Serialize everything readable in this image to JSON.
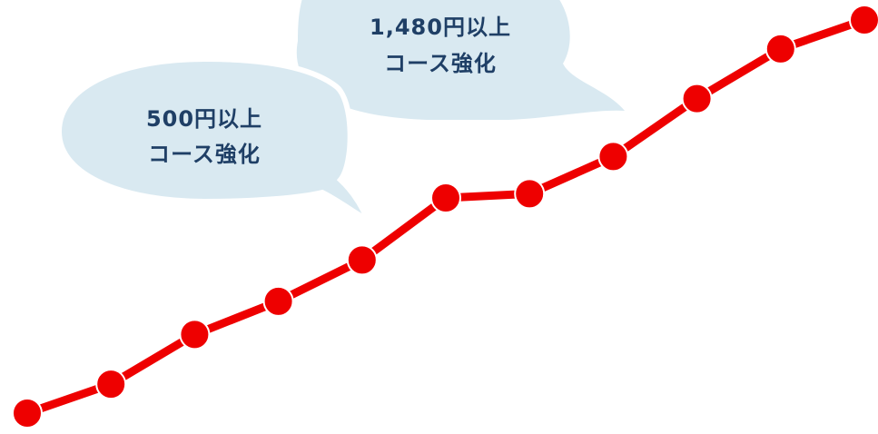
{
  "chart_data": {
    "type": "line",
    "title": "",
    "xlabel": "",
    "ylabel": "",
    "grid": false,
    "x": [
      1,
      2,
      3,
      4,
      5,
      6,
      7,
      8,
      9,
      10,
      11
    ],
    "series": [
      {
        "values": [
          0,
          7,
          19,
          27,
          37,
          52,
          53,
          62,
          76,
          88,
          95
        ]
      }
    ],
    "xlim": [
      1,
      11
    ],
    "ylim": [
      0,
      95
    ],
    "annotations": [
      {
        "id": "bubble-500",
        "line1": "500円以上",
        "line2": "コース強化"
      },
      {
        "id": "bubble-1480",
        "line1": "1,480円以上",
        "line2": "コース強化"
      }
    ]
  },
  "colors": {
    "line": "#ee0000",
    "marker": "#ee0000",
    "marker_stroke": "#ffffff",
    "bubble_fill": "#d9e9f1",
    "bubble_text": "#1f3f66"
  }
}
